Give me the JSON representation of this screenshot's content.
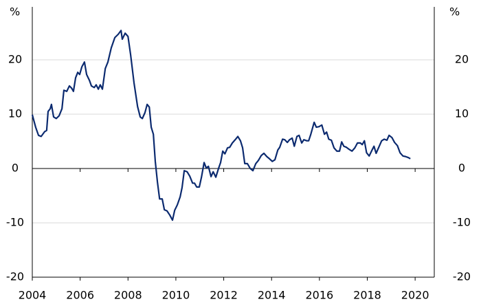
{
  "chart_data": {
    "type": "line",
    "y_unit_label": "%",
    "x": [
      2004.0,
      2004.14,
      2004.26,
      2004.37,
      2004.52,
      2004.6,
      2004.66,
      2004.75,
      2004.8,
      2004.89,
      2005.0,
      2005.12,
      2005.24,
      2005.32,
      2005.44,
      2005.55,
      2005.64,
      2005.72,
      2005.81,
      2005.9,
      2005.98,
      2006.07,
      2006.18,
      2006.27,
      2006.39,
      2006.47,
      2006.59,
      2006.67,
      2006.76,
      2006.84,
      2006.93,
      2007.05,
      2007.16,
      2007.3,
      2007.45,
      2007.59,
      2007.71,
      2007.76,
      2007.88,
      2008.0,
      2008.11,
      2008.25,
      2008.4,
      2008.51,
      2008.6,
      2008.71,
      2008.8,
      2008.89,
      2008.97,
      2009.06,
      2009.14,
      2009.23,
      2009.32,
      2009.43,
      2009.52,
      2009.63,
      2009.75,
      2009.86,
      2009.95,
      2010.06,
      2010.18,
      2010.26,
      2010.35,
      2010.47,
      2010.58,
      2010.7,
      2010.78,
      2010.87,
      2010.98,
      2011.07,
      2011.18,
      2011.27,
      2011.36,
      2011.47,
      2011.56,
      2011.67,
      2011.79,
      2011.87,
      2011.96,
      2012.05,
      2012.16,
      2012.25,
      2012.36,
      2012.48,
      2012.59,
      2012.7,
      2012.79,
      2012.88,
      2012.99,
      2013.11,
      2013.22,
      2013.34,
      2013.45,
      2013.57,
      2013.68,
      2013.8,
      2013.91,
      2014.03,
      2014.14,
      2014.26,
      2014.34,
      2014.46,
      2014.55,
      2014.66,
      2014.75,
      2014.86,
      2014.95,
      2015.06,
      2015.15,
      2015.26,
      2015.35,
      2015.47,
      2015.55,
      2015.64,
      2015.78,
      2015.87,
      2015.98,
      2016.1,
      2016.21,
      2016.3,
      2016.39,
      2016.5,
      2016.61,
      2016.73,
      2016.84,
      2016.93,
      2017.02,
      2017.13,
      2017.25,
      2017.36,
      2017.48,
      2017.59,
      2017.71,
      2017.79,
      2017.88,
      2017.97,
      2018.08,
      2018.2,
      2018.28,
      2018.37,
      2018.48,
      2018.6,
      2018.71,
      2018.82,
      2018.91,
      2019.03,
      2019.14,
      2019.26,
      2019.37,
      2019.49,
      2019.6,
      2019.72,
      2019.8
    ],
    "series": [
      {
        "color": "#0b2a6f",
        "values": [
          9.9,
          7.6,
          6.1,
          5.9,
          6.8,
          7.0,
          10.5,
          11.0,
          11.8,
          9.5,
          9.2,
          9.7,
          11.0,
          14.4,
          14.2,
          15.2,
          14.8,
          14.2,
          16.7,
          17.7,
          17.3,
          18.7,
          19.6,
          17.3,
          16.2,
          15.2,
          14.9,
          15.4,
          14.6,
          15.4,
          14.6,
          18.4,
          19.6,
          22.2,
          24.1,
          24.7,
          25.4,
          23.8,
          24.9,
          24.3,
          20.9,
          15.8,
          11.4,
          9.5,
          9.2,
          10.3,
          11.8,
          11.3,
          7.6,
          6.3,
          1.3,
          -2.5,
          -5.6,
          -5.6,
          -7.6,
          -7.8,
          -8.6,
          -9.5,
          -7.7,
          -6.7,
          -5.2,
          -3.5,
          -0.4,
          -0.6,
          -1.4,
          -2.7,
          -2.7,
          -3.4,
          -3.4,
          -1.6,
          1.1,
          0.1,
          0.4,
          -1.5,
          -0.6,
          -1.6,
          0.1,
          1.1,
          3.2,
          2.7,
          3.8,
          3.9,
          4.7,
          5.3,
          5.9,
          5.1,
          3.8,
          0.9,
          0.9,
          0.0,
          -0.4,
          0.9,
          1.5,
          2.4,
          2.8,
          2.2,
          1.8,
          1.3,
          1.6,
          3.4,
          3.9,
          5.4,
          5.3,
          4.8,
          5.3,
          5.6,
          4.1,
          5.9,
          6.1,
          4.7,
          5.3,
          5.1,
          5.1,
          6.3,
          8.5,
          7.6,
          7.7,
          8.0,
          6.3,
          6.7,
          5.4,
          5.2,
          3.8,
          3.2,
          3.2,
          4.9,
          4.1,
          3.9,
          3.5,
          3.2,
          3.8,
          4.7,
          4.7,
          4.4,
          5.1,
          2.9,
          2.3,
          3.4,
          4.1,
          2.8,
          3.9,
          5.1,
          5.4,
          5.2,
          6.1,
          5.7,
          4.8,
          4.2,
          2.9,
          2.3,
          2.2,
          2.0,
          1.8
        ]
      }
    ],
    "xlim": [
      2004,
      2020.8
    ],
    "xticks": [
      2004,
      2006,
      2008,
      2010,
      2012,
      2014,
      2016,
      2018,
      2020
    ],
    "ylim": [
      -20,
      30
    ],
    "yticks": [
      -20,
      -10,
      0,
      10,
      20
    ],
    "grid": true
  }
}
